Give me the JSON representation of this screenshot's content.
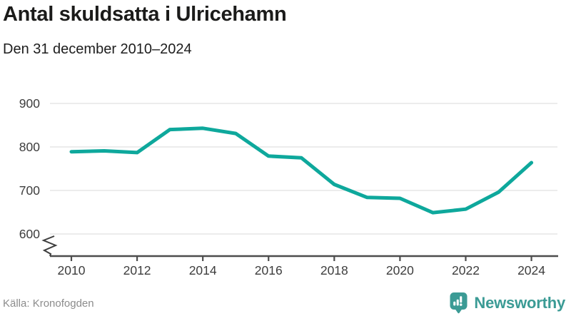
{
  "header": {
    "title": "Antal skuldsatta i Ulricehamn",
    "subtitle": "Den 31 december 2010–2024"
  },
  "chart_data": {
    "type": "line",
    "title": "Antal skuldsatta i Ulricehamn",
    "subtitle": "Den 31 december 2010–2024",
    "x": [
      2010,
      2011,
      2012,
      2013,
      2014,
      2015,
      2016,
      2017,
      2018,
      2019,
      2020,
      2021,
      2022,
      2023,
      2024
    ],
    "series": [
      {
        "name": "Antal skuldsatta",
        "values": [
          789,
          791,
          787,
          840,
          843,
          831,
          779,
          775,
          714,
          684,
          682,
          649,
          657,
          696,
          764
        ]
      }
    ],
    "xlabel": "",
    "ylabel": "",
    "x_ticks": [
      2010,
      2012,
      2014,
      2016,
      2018,
      2020,
      2022,
      2024
    ],
    "y_ticks": [
      600,
      700,
      800,
      900
    ],
    "ylim": [
      600,
      900
    ],
    "axis_break": true,
    "grid": "horizontal",
    "legend_position": "none",
    "line_color": "#0ea89c",
    "grid_color": "#e6e6e6",
    "axis_color": "#4d4d4d",
    "tick_label_color": "#3d3d3d"
  },
  "footer": {
    "source": "Källa: Kronofogden",
    "brand": "Newsworthy"
  },
  "colors": {
    "accent_teal": "#0ea89c",
    "brand_teal": "#3b9b95",
    "title_color": "#1b1b1a",
    "source_color": "#8c8c8c"
  }
}
